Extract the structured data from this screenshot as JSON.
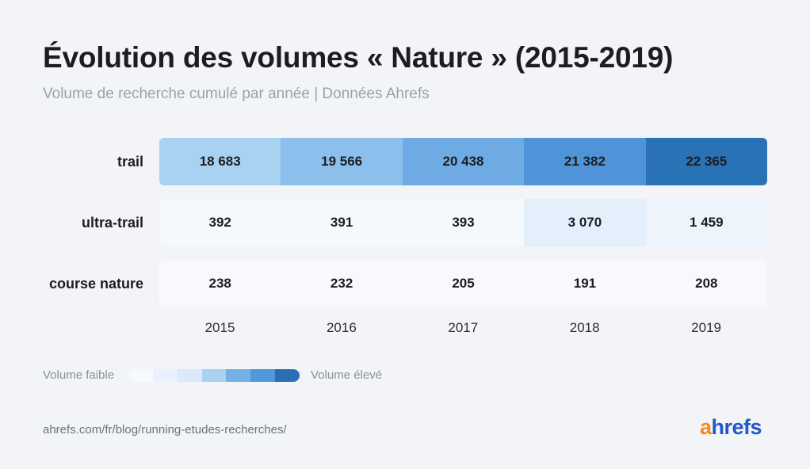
{
  "title": "Évolution des volumes « Nature » (2015-2019)",
  "subtitle": "Volume de recherche cumulé par année | Données Ahrefs",
  "legend": {
    "low_label": "Volume faible",
    "high_label": "Volume élevé",
    "colors": [
      "#f6f9fd",
      "#e9f2fc",
      "#dbeafa",
      "#a9d1f2",
      "#75b0e4",
      "#4f98db",
      "#2a6fb3"
    ]
  },
  "source": "ahrefs.com/fr/blog/running-etudes-recherches/",
  "logo": {
    "first_letter": "a",
    "rest": "hrefs",
    "first_color": "#f6881f",
    "rest_color": "#1f58c7"
  },
  "chart_data": {
    "type": "heatmap",
    "title": "Évolution des volumes « Nature » (2015-2019)",
    "subtitle": "Volume de recherche cumulé par année | Données Ahrefs",
    "x": [
      "2015",
      "2016",
      "2017",
      "2018",
      "2019"
    ],
    "rows": [
      {
        "name": "trail",
        "values": [
          18683,
          19566,
          20438,
          21382,
          22365
        ],
        "labels": [
          "18 683",
          "19 566",
          "20 438",
          "21 382",
          "22 365"
        ],
        "colors": [
          "#a8d1f2",
          "#8cbfeb",
          "#6eaae3",
          "#4f94d8",
          "#2a72b6"
        ]
      },
      {
        "name": "ultra-trail",
        "values": [
          392,
          391,
          393,
          3070,
          1459
        ],
        "labels": [
          "392",
          "391",
          "393",
          "3 070",
          "1 459"
        ],
        "colors": [
          "#f5f8fd",
          "#f5f8fd",
          "#f5f8fd",
          "#e3effb",
          "#eef4fc"
        ]
      },
      {
        "name": "course nature",
        "values": [
          238,
          232,
          205,
          191,
          208
        ],
        "labels": [
          "238",
          "232",
          "205",
          "191",
          "208"
        ],
        "colors": [
          "#f7f9fc",
          "#f7f9fc",
          "#f7f9fc",
          "#f7f9fc",
          "#f7f9fc"
        ]
      }
    ]
  }
}
